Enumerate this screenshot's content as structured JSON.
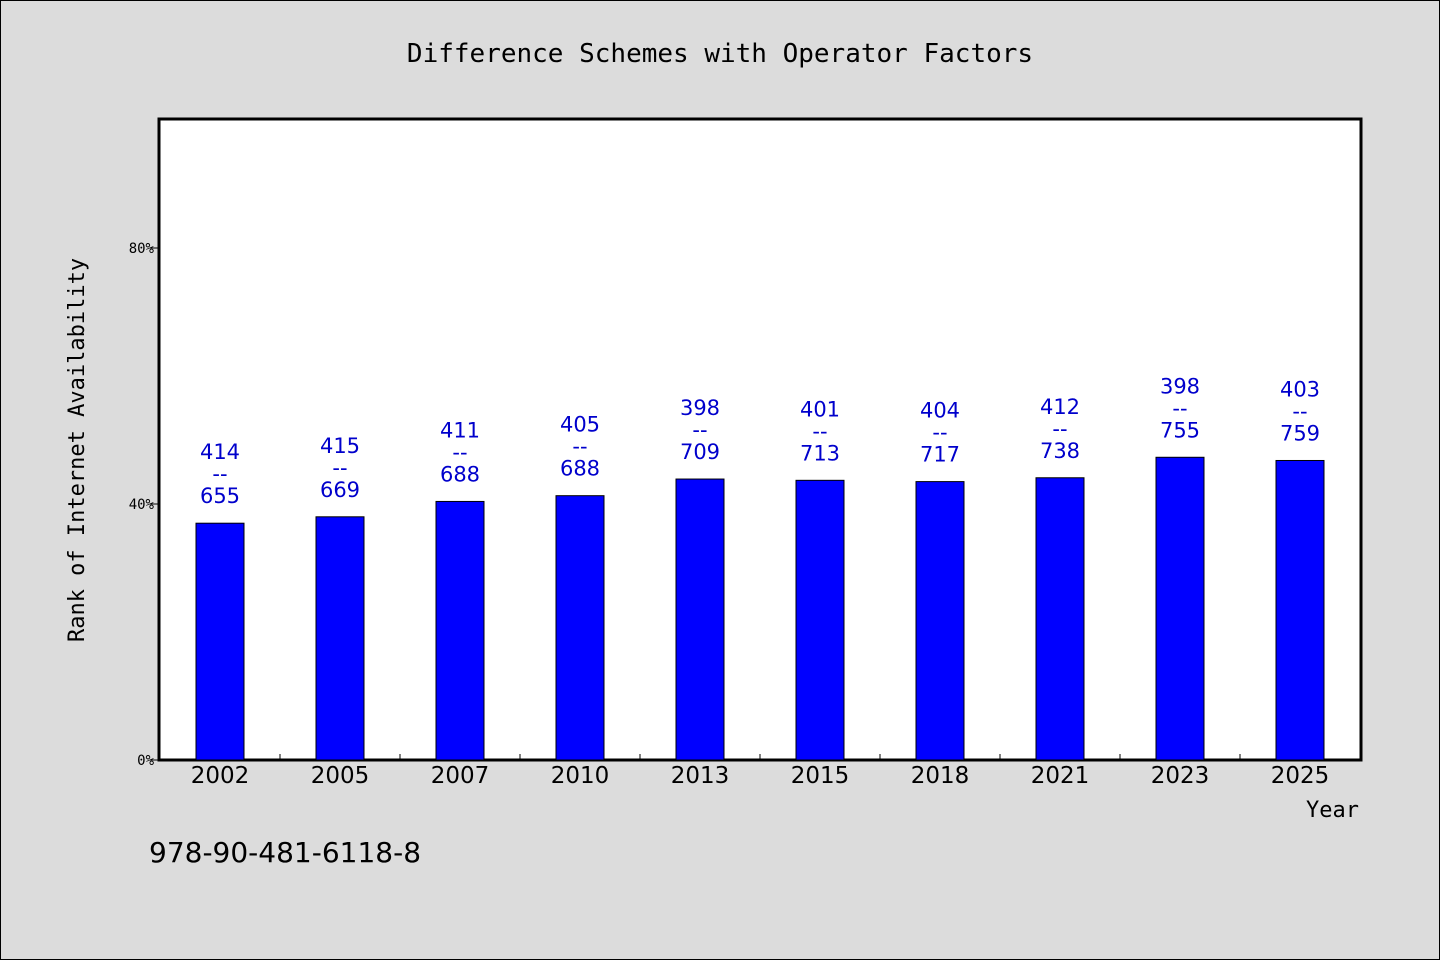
{
  "chart_data": {
    "type": "bar",
    "title": "Difference Schemes with Operator Factors",
    "xlabel": "Year",
    "ylabel": "Rank of Internet Availability",
    "categories": [
      "2002",
      "2005",
      "2007",
      "2010",
      "2013",
      "2015",
      "2018",
      "2021",
      "2023",
      "2025"
    ],
    "values": [
      37,
      38,
      40.4,
      41.3,
      43.9,
      43.7,
      43.5,
      44.1,
      47.3,
      46.8
    ],
    "bar_labels": [
      {
        "top": "414",
        "sep": "--",
        "bottom": "655"
      },
      {
        "top": "415",
        "sep": "--",
        "bottom": "669"
      },
      {
        "top": "411",
        "sep": "--",
        "bottom": "688"
      },
      {
        "top": "405",
        "sep": "--",
        "bottom": "688"
      },
      {
        "top": "398",
        "sep": "--",
        "bottom": "709"
      },
      {
        "top": "401",
        "sep": "--",
        "bottom": "713"
      },
      {
        "top": "404",
        "sep": "--",
        "bottom": "717"
      },
      {
        "top": "412",
        "sep": "--",
        "bottom": "738"
      },
      {
        "top": "398",
        "sep": "--",
        "bottom": "755"
      },
      {
        "top": "403",
        "sep": "--",
        "bottom": "759"
      }
    ],
    "ylim": [
      0,
      100
    ],
    "yticks": [
      0,
      40,
      80
    ],
    "ytick_labels": [
      "0%",
      "40%",
      "80%"
    ],
    "grid": false,
    "bar_color": "#0000ff",
    "label_color": "#0000cc",
    "plot_background": "#ffffff",
    "page_background": "#dcdcdc"
  },
  "footer_text": "978-90-481-6118-8"
}
